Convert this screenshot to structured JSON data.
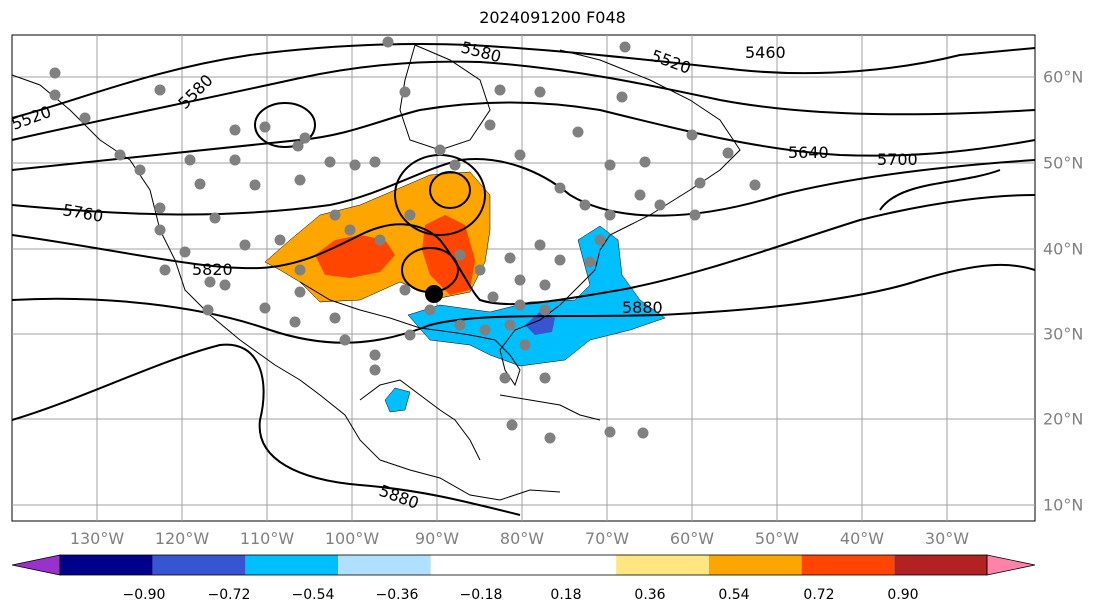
{
  "title": "2024091200 F048",
  "contour_labels": [
    "5520",
    "5580",
    "5580",
    "5520",
    "5460",
    "5640",
    "5700",
    "5760",
    "5820",
    "5880",
    "5880"
  ],
  "lon_labels": [
    "130°W",
    "120°W",
    "110°W",
    "100°W",
    "90°W",
    "80°W",
    "70°W",
    "60°W",
    "50°W",
    "40°W",
    "30°W"
  ],
  "lat_labels": [
    "60°N",
    "50°N",
    "40°N",
    "30°N",
    "20°N",
    "10°N"
  ],
  "colorbar": {
    "colors": [
      "#9932cc",
      "#00008b",
      "#3755d0",
      "#00bfff",
      "#b0e0ff",
      "#ffffff",
      "#ffffff",
      "#ffe680",
      "#ffa500",
      "#ff4500",
      "#b22222",
      "#ff82ab"
    ],
    "tick_labels": [
      "−0.90",
      "−0.72",
      "−0.54",
      "−0.36",
      "−0.18",
      "0.18",
      "0.36",
      "0.54",
      "0.72",
      "0.90"
    ]
  }
}
